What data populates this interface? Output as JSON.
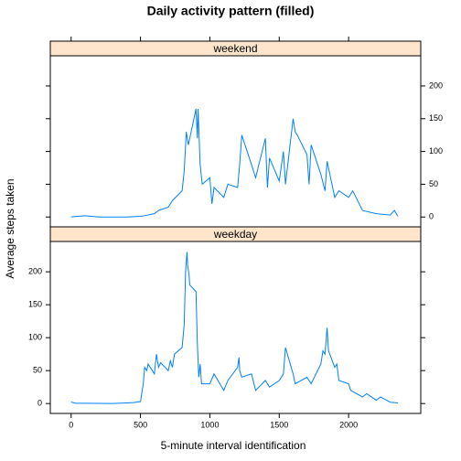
{
  "chart_data": {
    "type": "line",
    "title": "Daily activity pattern (filled)",
    "x_label": "5-minute interval identification",
    "y_label": "Average steps taken",
    "color": "#0080ff",
    "xlim": [
      -150,
      2520
    ],
    "ylim": [
      -15,
      246
    ],
    "xticks": [
      0,
      500,
      1000,
      1500,
      2000
    ],
    "yticks": [
      0,
      50,
      100,
      150,
      200
    ],
    "panels": [
      {
        "name": "weekend",
        "x": [
          0,
          100,
          200,
          300,
          400,
          500,
          530,
          600,
          630,
          700,
          730,
          800,
          815,
          830,
          845,
          900,
          910,
          915,
          930,
          945,
          1000,
          1015,
          1030,
          1100,
          1130,
          1200,
          1215,
          1230,
          1300,
          1330,
          1400,
          1415,
          1430,
          1500,
          1530,
          1545,
          1600,
          1615,
          1630,
          1700,
          1715,
          1730,
          1800,
          1830,
          1845,
          1900,
          1930,
          2000,
          2030,
          2100,
          2200,
          2300,
          2330,
          2355
        ],
        "values": [
          0.2,
          2,
          0,
          0,
          0,
          1,
          2,
          5,
          10,
          15,
          25,
          40,
          70,
          130,
          110,
          165,
          120,
          165,
          80,
          50,
          60,
          20,
          45,
          30,
          50,
          45,
          80,
          125,
          80,
          60,
          120,
          45,
          90,
          55,
          100,
          50,
          150,
          130,
          125,
          95,
          50,
          110,
          65,
          40,
          85,
          30,
          40,
          30,
          40,
          10,
          5,
          3,
          10,
          1
        ]
      },
      {
        "name": "weekday",
        "x": [
          0,
          30,
          100,
          200,
          300,
          400,
          450,
          500,
          520,
          530,
          545,
          555,
          600,
          615,
          630,
          645,
          700,
          715,
          730,
          745,
          800,
          815,
          825,
          835,
          840,
          850,
          855,
          900,
          910,
          920,
          930,
          940,
          1000,
          1030,
          1100,
          1130,
          1200,
          1210,
          1215,
          1230,
          1300,
          1330,
          1400,
          1430,
          1500,
          1530,
          1545,
          1600,
          1615,
          1700,
          1730,
          1800,
          1815,
          1830,
          1845,
          1855,
          1900,
          1915,
          1930,
          2000,
          2015,
          2100,
          2130,
          2200,
          2230,
          2300,
          2355
        ],
        "values": [
          2.3,
          0.5,
          0.4,
          0.2,
          0.1,
          1,
          1.5,
          3,
          30,
          55,
          50,
          60,
          45,
          75,
          55,
          62,
          50,
          65,
          55,
          75,
          85,
          120,
          200,
          230,
          210,
          195,
          180,
          170,
          90,
          40,
          60,
          30,
          30,
          45,
          20,
          35,
          55,
          70,
          50,
          40,
          45,
          20,
          35,
          25,
          35,
          45,
          85,
          45,
          30,
          40,
          30,
          60,
          80,
          75,
          115,
          80,
          55,
          60,
          35,
          30,
          20,
          10,
          15,
          5,
          10,
          2,
          1
        ]
      }
    ]
  }
}
